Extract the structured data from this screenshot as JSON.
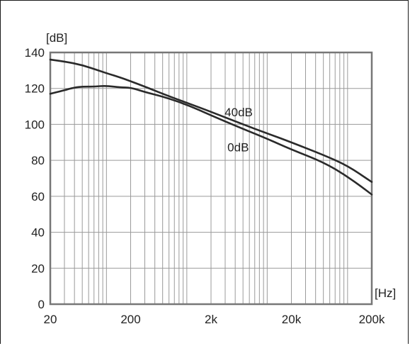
{
  "chart_data": {
    "type": "line",
    "x_scale": "log",
    "xlim": [
      20,
      200000
    ],
    "ylim": [
      0,
      140
    ],
    "grid": true,
    "x_tick_values": [
      20,
      200,
      2000,
      20000,
      200000
    ],
    "x_tick_labels": [
      "20",
      "200",
      "2k",
      "20k",
      "200k"
    ],
    "y_tick_values": [
      0,
      20,
      40,
      60,
      80,
      100,
      120,
      140
    ],
    "y_tick_labels": [
      "0",
      "20",
      "40",
      "60",
      "80",
      "100",
      "120",
      "140"
    ],
    "xlabel": "[Hz]",
    "ylabel": "[dB]",
    "series": [
      {
        "name": "40dB",
        "x": [
          20,
          30,
          50,
          80,
          100,
          150,
          200,
          300,
          500,
          1000,
          2000,
          5000,
          10000,
          20000,
          50000,
          100000,
          200000
        ],
        "y": [
          136,
          135,
          133,
          130,
          128.5,
          126,
          124,
          121,
          117,
          112,
          107,
          100,
          95,
          90,
          83,
          77,
          68
        ]
      },
      {
        "name": "0dB",
        "x": [
          20,
          30,
          40,
          50,
          70,
          100,
          150,
          200,
          300,
          500,
          1000,
          2000,
          5000,
          10000,
          20000,
          50000,
          100000,
          200000
        ],
        "y": [
          117,
          119,
          120.5,
          121,
          121,
          121.5,
          120.5,
          120.5,
          118,
          115.5,
          111,
          105,
          97.5,
          92,
          86,
          79,
          71,
          61
        ]
      }
    ]
  }
}
